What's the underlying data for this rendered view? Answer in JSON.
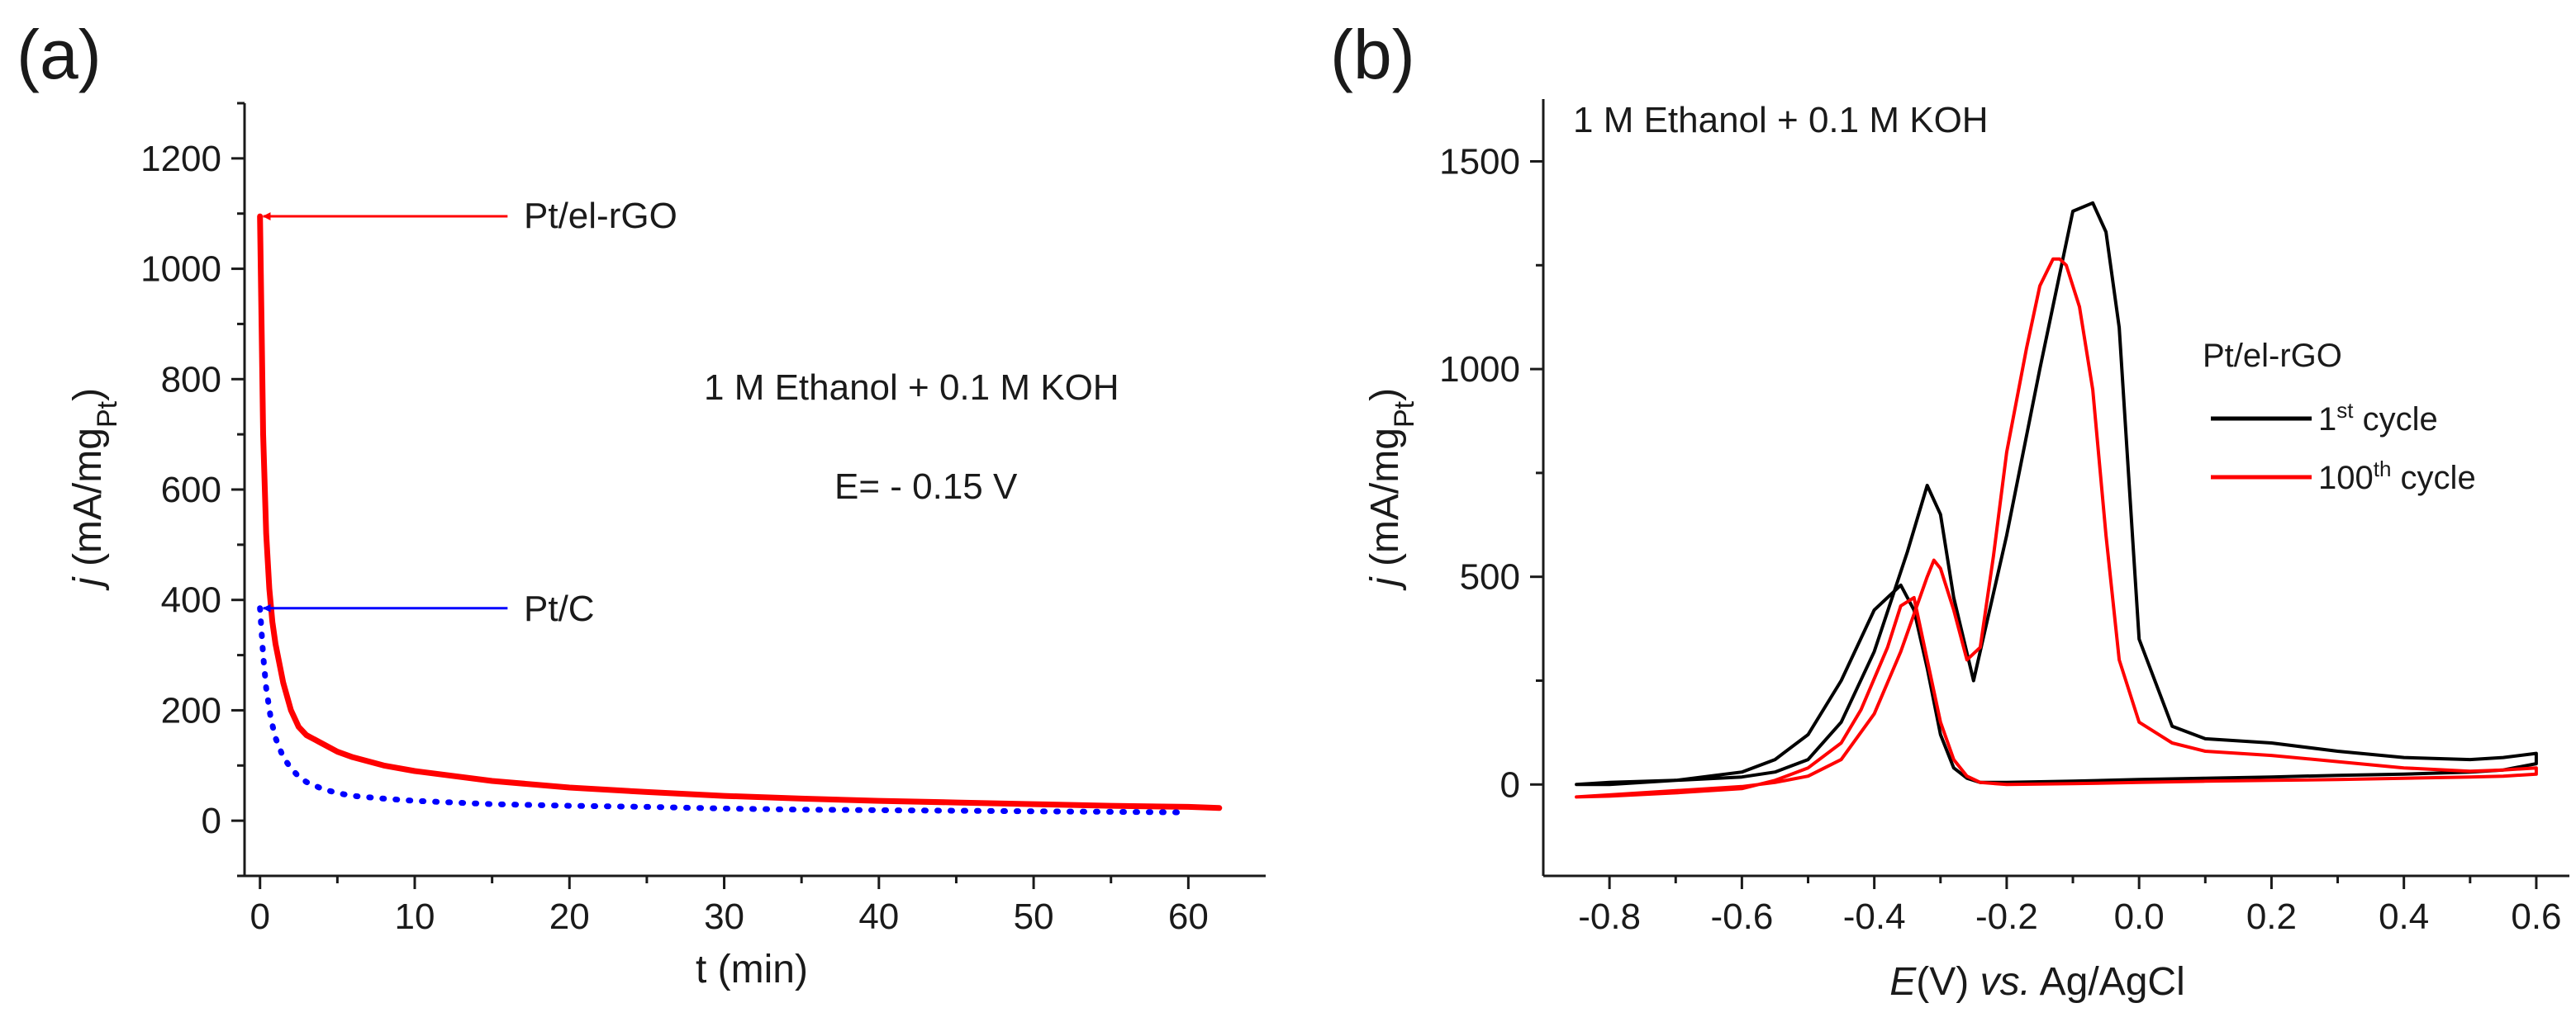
{
  "chart_data": [
    {
      "panel": "(a)",
      "type": "line",
      "title": "",
      "xlabel": "t (min)",
      "ylabel": {
        "italic": "j",
        "text": " (mA/mg",
        "sub": "Pt",
        "close": ")"
      },
      "xlim": [
        -1,
        65
      ],
      "ylim": [
        -100,
        1300
      ],
      "xticks": [
        0,
        10,
        20,
        30,
        40,
        50,
        60
      ],
      "yticks": [
        0,
        200,
        400,
        600,
        800,
        1000,
        1200
      ],
      "xtick_labels": [
        "0",
        "10",
        "20",
        "30",
        "40",
        "50",
        "60"
      ],
      "ytick_labels": [
        "0",
        "200",
        "400",
        "600",
        "800",
        "1000",
        "1200"
      ],
      "grid": false,
      "annotations": {
        "condition": "1 M Ethanol + 0.1 M KOH",
        "potential": "E= - 0.15 V"
      },
      "arrows": [
        {
          "label": "Pt/el-rGO",
          "color": "#ff0000",
          "from": [
            16,
            1095
          ],
          "to": [
            0,
            1095
          ]
        },
        {
          "label": "Pt/C",
          "color": "#0000ff",
          "from": [
            16,
            385
          ],
          "to": [
            0,
            385
          ]
        }
      ],
      "series": [
        {
          "name": "Pt/el-rGO",
          "color": "#ff0000",
          "style": "solid",
          "x": [
            0,
            0.1,
            0.2,
            0.4,
            0.6,
            0.8,
            1.0,
            1.5,
            2.0,
            2.5,
            3,
            4,
            5,
            6,
            8,
            10,
            15,
            20,
            25,
            30,
            35,
            40,
            45,
            50,
            55,
            60,
            62
          ],
          "y": [
            1095,
            900,
            700,
            520,
            420,
            360,
            320,
            250,
            200,
            170,
            155,
            140,
            125,
            115,
            100,
            90,
            72,
            60,
            52,
            45,
            40,
            36,
            33,
            30,
            27,
            25,
            23
          ]
        },
        {
          "name": "Pt/C",
          "color": "#0000ff",
          "style": "dotted",
          "x": [
            0,
            0.2,
            0.4,
            0.7,
            1.0,
            1.5,
            2.0,
            2.5,
            3,
            4,
            5,
            6,
            8,
            10,
            15,
            20,
            25,
            30,
            35,
            40,
            45,
            50,
            55,
            60
          ],
          "y": [
            385,
            300,
            240,
            185,
            150,
            115,
            95,
            80,
            70,
            58,
            50,
            45,
            40,
            36,
            30,
            27,
            25,
            22,
            20,
            19,
            18,
            17,
            16,
            15
          ]
        }
      ]
    },
    {
      "panel": "(b)",
      "type": "line",
      "title": "",
      "xlabel": {
        "italic": "E",
        "text": "(V) ",
        "italic2": "vs.",
        "text2": " Ag/AgCl"
      },
      "ylabel": {
        "italic": "j",
        "text": " (mA/mg",
        "sub": "Pt",
        "close": ")"
      },
      "xlim": [
        -0.9,
        0.65
      ],
      "ylim": [
        -220,
        1650
      ],
      "xticks": [
        -0.8,
        -0.6,
        -0.4,
        -0.2,
        0.0,
        0.2,
        0.4,
        0.6
      ],
      "yticks": [
        0,
        500,
        1000,
        1500
      ],
      "xtick_labels": [
        "-0.8",
        "-0.6",
        "-0.4",
        "-0.2",
        "0.0",
        "0.2",
        "0.4",
        "0.6"
      ],
      "ytick_labels": [
        "0",
        "500",
        "1000",
        "1500"
      ],
      "grid": false,
      "annotations": {
        "condition": "1 M Ethanol + 0.1 M KOH"
      },
      "legend": {
        "title": "Pt/el-rGO",
        "placement": "center-right",
        "entries": [
          {
            "base": "1",
            "sup": "st",
            "rest": " cycle",
            "color": "#000000"
          },
          {
            "base": "100",
            "sup": "th",
            "rest": " cycle",
            "color": "#ff0000"
          }
        ]
      },
      "series": [
        {
          "name": "1st cycle",
          "color": "#000000",
          "style": "solid",
          "x": [
            -0.85,
            -0.8,
            -0.7,
            -0.6,
            -0.55,
            -0.5,
            -0.45,
            -0.4,
            -0.35,
            -0.32,
            -0.3,
            -0.28,
            -0.25,
            -0.2,
            -0.15,
            -0.1,
            -0.07,
            -0.05,
            -0.03,
            -0.01,
            0.0,
            0.05,
            0.1,
            0.2,
            0.3,
            0.4,
            0.5,
            0.55,
            0.6,
            0.6,
            0.55,
            0.5,
            0.4,
            0.3,
            0.2,
            0.1,
            0.0,
            -0.1,
            -0.2,
            -0.24,
            -0.26,
            -0.28,
            -0.3,
            -0.32,
            -0.34,
            -0.36,
            -0.4,
            -0.45,
            -0.5,
            -0.55,
            -0.6,
            -0.7,
            -0.8,
            -0.85
          ],
          "y": [
            0,
            5,
            10,
            18,
            30,
            60,
            150,
            320,
            560,
            720,
            650,
            450,
            250,
            600,
            1000,
            1380,
            1400,
            1330,
            1100,
            600,
            350,
            140,
            110,
            100,
            80,
            65,
            60,
            65,
            75,
            50,
            35,
            30,
            25,
            22,
            18,
            15,
            12,
            8,
            5,
            5,
            15,
            40,
            120,
            280,
            420,
            480,
            420,
            250,
            120,
            60,
            30,
            10,
            0,
            0
          ]
        },
        {
          "name": "100th cycle",
          "color": "#ff0000",
          "style": "solid",
          "x": [
            -0.85,
            -0.8,
            -0.7,
            -0.6,
            -0.55,
            -0.5,
            -0.45,
            -0.4,
            -0.36,
            -0.34,
            -0.32,
            -0.31,
            -0.3,
            -0.28,
            -0.26,
            -0.24,
            -0.22,
            -0.2,
            -0.17,
            -0.15,
            -0.13,
            -0.12,
            -0.11,
            -0.09,
            -0.07,
            -0.05,
            -0.03,
            0.0,
            0.05,
            0.1,
            0.2,
            0.3,
            0.4,
            0.5,
            0.55,
            0.6,
            0.6,
            0.55,
            0.5,
            0.4,
            0.3,
            0.2,
            0.1,
            0.0,
            -0.1,
            -0.2,
            -0.24,
            -0.26,
            -0.28,
            -0.3,
            -0.32,
            -0.34,
            -0.36,
            -0.38,
            -0.42,
            -0.45,
            -0.5,
            -0.55,
            -0.6,
            -0.7,
            -0.8,
            -0.85
          ],
          "y": [
            -30,
            -25,
            -15,
            -5,
            5,
            20,
            60,
            170,
            320,
            410,
            500,
            540,
            520,
            420,
            300,
            330,
            550,
            800,
            1050,
            1200,
            1265,
            1265,
            1250,
            1150,
            950,
            600,
            300,
            150,
            100,
            80,
            70,
            55,
            40,
            32,
            35,
            40,
            25,
            20,
            18,
            15,
            12,
            10,
            8,
            5,
            2,
            0,
            5,
            20,
            60,
            150,
            300,
            450,
            430,
            330,
            180,
            100,
            40,
            10,
            -10,
            -20,
            -28,
            -30
          ]
        }
      ]
    }
  ]
}
